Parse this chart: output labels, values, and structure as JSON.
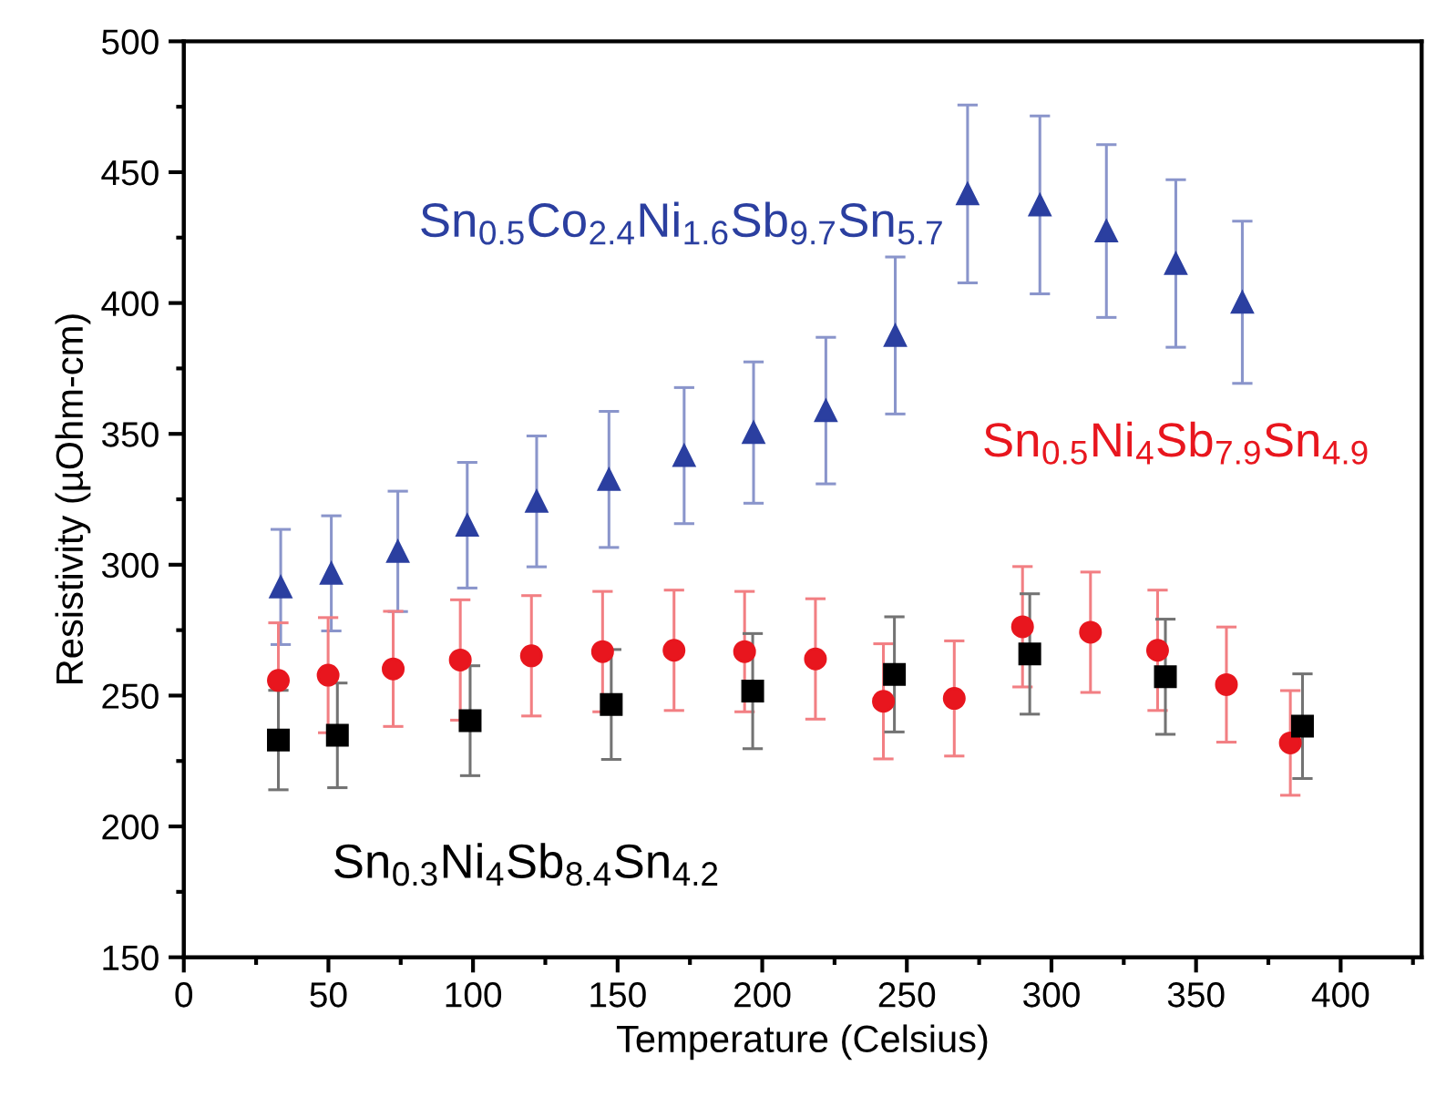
{
  "chart_data": {
    "type": "scatter",
    "xlabel": "Temperature (Celsius)",
    "ylabel": "Resistivity (µOhm-cm)",
    "xlim": [
      0,
      428
    ],
    "ylim": [
      150,
      500
    ],
    "xticks": [
      0,
      50,
      100,
      150,
      200,
      250,
      300,
      350,
      400
    ],
    "yticks": [
      150,
      200,
      250,
      300,
      350,
      400,
      450,
      500
    ],
    "grid": false,
    "legend": false,
    "series": [
      {
        "name": "Sn$_{0.5}$Co$_{2.4}$Ni$_{1.6}$Sb$_{9.7}$Sn$_{5.7}$",
        "color": "#2b3fa0",
        "marker": "triangle",
        "x": [
          33.5,
          51,
          74,
          98,
          122,
          147,
          173,
          197,
          222,
          246,
          271,
          296,
          319,
          343,
          366
        ],
        "values": [
          291.5,
          296.7,
          305.1,
          315.1,
          324.2,
          332.6,
          341.7,
          350.5,
          358.9,
          387.6,
          441.7,
          437.5,
          427.5,
          415.1,
          400.3
        ],
        "errors": [
          22,
          22,
          23,
          24,
          25,
          26,
          26,
          27,
          28,
          30,
          34,
          34,
          33,
          32,
          31
        ]
      },
      {
        "name": "Sn$_{0.5}$Ni$_{4}$Sb$_{7.9}$Sn$_{4.9}$",
        "color": "#e8161e",
        "marker": "circle",
        "x": [
          32.7,
          49.9,
          72.4,
          95.6,
          120.2,
          144.8,
          169.5,
          193.9,
          218.4,
          241.9,
          266.4,
          290,
          313.5,
          336.7,
          360.5,
          382.6
        ],
        "values": [
          255.8,
          257.8,
          260.2,
          263.6,
          265.2,
          266.8,
          267.3,
          266.8,
          264,
          247.8,
          248.9,
          276.3,
          274.2,
          267.3,
          254.2,
          231.9
        ],
        "errors": [
          22,
          22,
          22,
          23,
          23,
          23,
          23,
          23,
          23,
          22,
          22,
          23,
          23,
          23,
          22,
          20
        ]
      },
      {
        "name": "Sn$_{0.3}$Ni$_{4}$Sb$_{8.4}$Sn$_{4.2}$",
        "color": "#000000",
        "marker": "square",
        "x": [
          32.7,
          53.1,
          99,
          147.8,
          196.7,
          245.7,
          292.5,
          339.4,
          386.8
        ],
        "values": [
          233,
          234.8,
          240.4,
          246.6,
          251.7,
          258.1,
          265.9,
          257.2,
          238.3
        ],
        "errors": [
          19,
          20,
          21,
          21,
          22,
          22,
          23,
          22,
          20
        ]
      }
    ]
  }
}
